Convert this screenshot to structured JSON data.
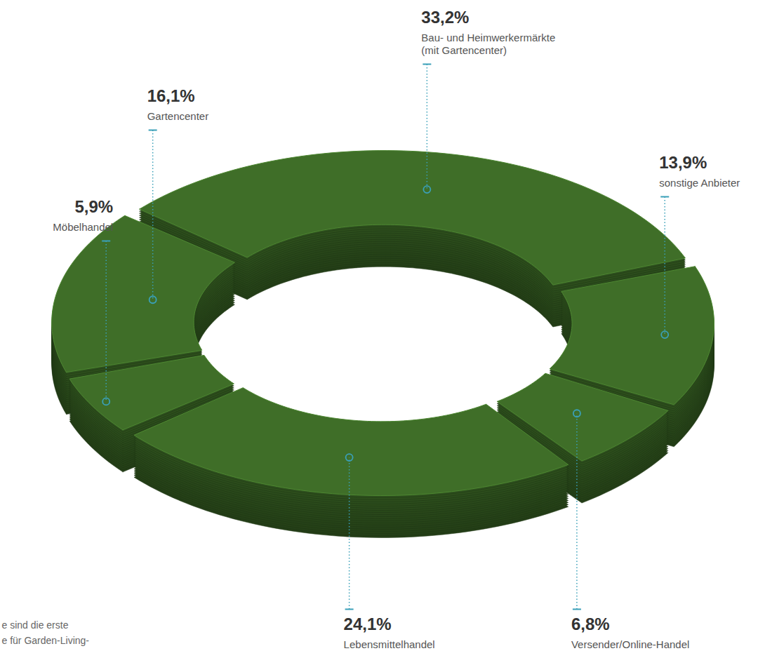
{
  "chart_data": {
    "type": "donut",
    "categories": [
      "Bau- und Heimwerkermärkte (mit Gartencenter)",
      "sonstige Anbieter",
      "Versender/Online-Handel",
      "Lebensmittelhandel",
      "Möbelhandel",
      "Gartencenter"
    ],
    "values": [
      33.2,
      13.9,
      6.8,
      24.1,
      5.9,
      16.1
    ],
    "value_labels": [
      "33,2%",
      "13,9%",
      "6,8%",
      "24,1%",
      "5,9%",
      "16,1%"
    ],
    "data_labels": true,
    "color": "#3f6e28",
    "annotations": [
      "e sind die erste",
      "e für Garden-Living-"
    ]
  }
}
